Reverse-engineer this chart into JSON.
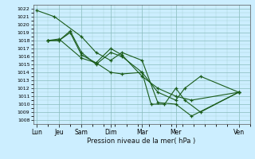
{
  "title": "Pression niveau de la mer( hPa )",
  "background_color": "#cceeff",
  "line_color": "#1a5c1a",
  "ylim": [
    1007.5,
    1022.5
  ],
  "yticks": [
    1008,
    1009,
    1010,
    1011,
    1012,
    1013,
    1014,
    1015,
    1016,
    1017,
    1018,
    1019,
    1020,
    1021,
    1022
  ],
  "x_tick_positions": [
    0,
    1,
    2,
    3.3,
    4.7,
    6.2,
    9.0
  ],
  "x_tick_labels": [
    "Lun",
    "Jeu",
    "Sam",
    "Dim",
    "Mar",
    "Mer",
    "Ven"
  ],
  "xlim": [
    -0.15,
    9.3
  ],
  "lines": [
    {
      "x": [
        0.0,
        0.8,
        2.0,
        2.65,
        3.3,
        3.8,
        4.7,
        5.4,
        6.2,
        6.9,
        9.0
      ],
      "y": [
        1021.8,
        1021.0,
        1018.5,
        1016.5,
        1015.5,
        1016.5,
        1015.5,
        1010.2,
        1010.0,
        1008.5,
        1011.5
      ]
    },
    {
      "x": [
        0.5,
        1.0,
        1.5,
        2.0,
        2.65,
        3.3,
        3.8,
        4.7,
        5.4,
        6.2,
        6.9,
        9.0
      ],
      "y": [
        1018.0,
        1018.0,
        1019.0,
        1016.2,
        1015.2,
        1017.0,
        1016.2,
        1013.5,
        1012.0,
        1011.0,
        1010.5,
        1011.5
      ]
    },
    {
      "x": [
        0.5,
        1.0,
        1.5,
        2.0,
        2.65,
        3.3,
        3.8,
        4.7,
        5.4,
        6.2,
        6.6,
        7.3,
        9.0
      ],
      "y": [
        1018.0,
        1018.0,
        1019.2,
        1016.5,
        1015.0,
        1016.5,
        1016.0,
        1014.0,
        1011.5,
        1010.5,
        1012.0,
        1013.5,
        1011.5
      ]
    },
    {
      "x": [
        0.5,
        1.0,
        2.0,
        2.65,
        3.3,
        3.8,
        4.7,
        5.1,
        5.7,
        6.2,
        6.6,
        7.3,
        9.0
      ],
      "y": [
        1018.0,
        1018.2,
        1015.8,
        1015.2,
        1014.0,
        1013.8,
        1014.0,
        1010.0,
        1010.0,
        1012.0,
        1010.5,
        1009.0,
        1011.5
      ]
    }
  ]
}
